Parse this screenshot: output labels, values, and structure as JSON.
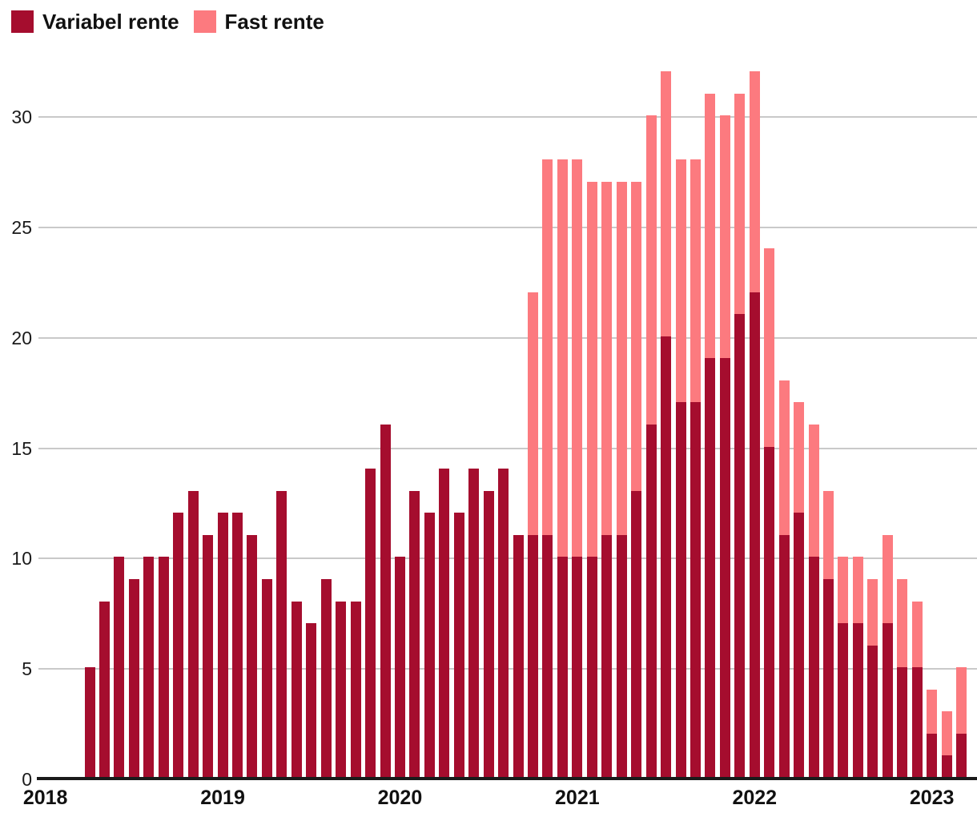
{
  "legend": {
    "items": [
      {
        "label": "Variabel rente",
        "color": "#A50D2E"
      },
      {
        "label": "Fast rente",
        "color": "#FC7A7F"
      }
    ]
  },
  "colors": {
    "variabel": "#A50D2E",
    "fast": "#FC7A7F",
    "gridline": "#c9c9c9",
    "axis": "#1a1a1a",
    "text": "#111111"
  },
  "chart_data": {
    "type": "bar",
    "stacked": true,
    "title": "",
    "xlabel": "",
    "ylabel": "",
    "grid": true,
    "legend_position": "top-left",
    "ylim": [
      0,
      32.5
    ],
    "y_ticks": [
      0,
      5,
      10,
      15,
      20,
      25,
      30
    ],
    "x_tick_labels": [
      "2018",
      "2019",
      "2020",
      "2021",
      "2022",
      "2023"
    ],
    "x": [
      "2018-04",
      "2018-05",
      "2018-06",
      "2018-07",
      "2018-08",
      "2018-09",
      "2018-10",
      "2018-11",
      "2018-12",
      "2019-01",
      "2019-02",
      "2019-03",
      "2019-04",
      "2019-05",
      "2019-06",
      "2019-07",
      "2019-08",
      "2019-09",
      "2019-10",
      "2019-11",
      "2019-12",
      "2020-01",
      "2020-02",
      "2020-03",
      "2020-04",
      "2020-05",
      "2020-06",
      "2020-07",
      "2020-08",
      "2020-09",
      "2020-10",
      "2020-11",
      "2020-12",
      "2021-01",
      "2021-02",
      "2021-03",
      "2021-04",
      "2021-05",
      "2021-06",
      "2021-07",
      "2021-08",
      "2021-09",
      "2021-10",
      "2021-11",
      "2021-12",
      "2022-01",
      "2022-02",
      "2022-03",
      "2022-04",
      "2022-05",
      "2022-06",
      "2022-07",
      "2022-08",
      "2022-09",
      "2022-10",
      "2022-11",
      "2022-12",
      "2023-01",
      "2023-02",
      "2023-03"
    ],
    "series": [
      {
        "name": "Variabel rente",
        "color": "#A50D2E",
        "values": [
          5,
          8,
          10,
          9,
          10,
          10,
          12,
          13,
          11,
          12,
          12,
          11,
          9,
          13,
          8,
          7,
          9,
          8,
          8,
          14,
          16,
          10,
          13,
          12,
          14,
          12,
          14,
          13,
          14,
          11,
          11,
          11,
          10,
          10,
          10,
          11,
          11,
          13,
          16,
          20,
          17,
          17,
          19,
          19,
          21,
          22,
          15,
          11,
          12,
          10,
          9,
          7,
          7,
          6,
          7,
          5,
          5,
          2,
          1,
          2
        ]
      },
      {
        "name": "Fast rente",
        "color": "#FC7A7F",
        "values": [
          0,
          0,
          0,
          0,
          0,
          0,
          0,
          0,
          0,
          0,
          0,
          0,
          0,
          0,
          0,
          0,
          0,
          0,
          0,
          0,
          0,
          0,
          0,
          0,
          0,
          0,
          0,
          0,
          0,
          0,
          11,
          17,
          18,
          18,
          17,
          16,
          16,
          14,
          14,
          12,
          11,
          11,
          12,
          11,
          10,
          10,
          9,
          7,
          5,
          6,
          4,
          3,
          3,
          3,
          4,
          4,
          3,
          2,
          2,
          3
        ]
      }
    ]
  }
}
